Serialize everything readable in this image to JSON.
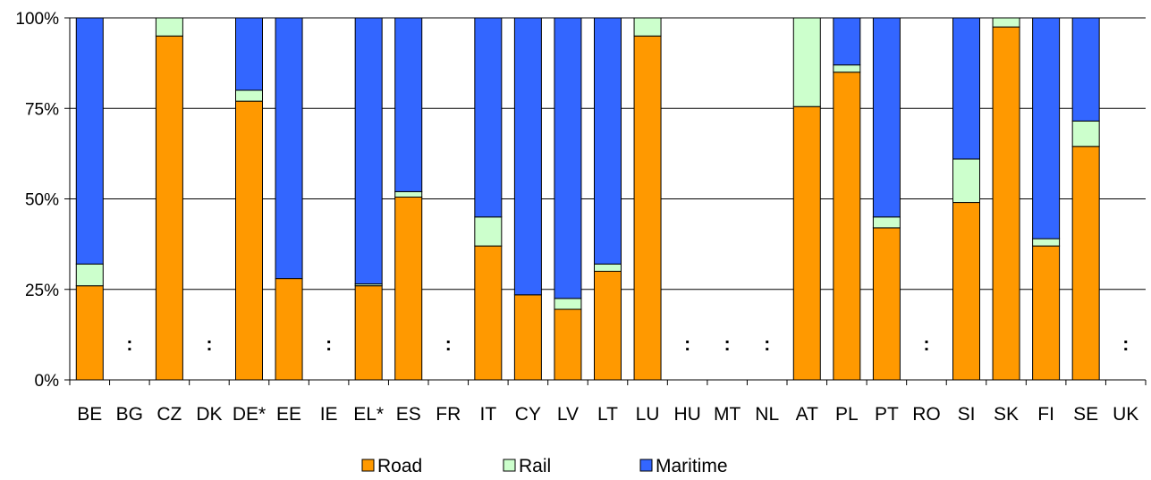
{
  "chart_data": {
    "type": "bar",
    "stacked": true,
    "percent": true,
    "categories": [
      "BE",
      "BG",
      "CZ",
      "DK",
      "DE*",
      "EE",
      "IE",
      "EL*",
      "ES",
      "FR",
      "IT",
      "CY",
      "LV",
      "LT",
      "LU",
      "HU",
      "MT",
      "NL",
      "AT",
      "PL",
      "PT",
      "RO",
      "SI",
      "SK",
      "FI",
      "SE",
      "UK"
    ],
    "series": [
      {
        "name": "Road",
        "color": "#ff9900",
        "values": [
          26,
          null,
          95,
          null,
          77,
          28,
          null,
          26,
          50.5,
          null,
          37,
          23.5,
          19.5,
          30,
          95,
          null,
          null,
          null,
          75.5,
          85,
          42,
          null,
          49,
          97.5,
          37,
          64.5,
          null
        ]
      },
      {
        "name": "Rail",
        "color": "#ccffcc",
        "values": [
          6,
          null,
          5,
          null,
          3,
          0,
          null,
          0.5,
          1.5,
          null,
          8,
          0,
          3,
          2,
          5,
          null,
          null,
          null,
          24.5,
          2,
          3,
          null,
          12,
          2.5,
          2,
          7,
          null
        ]
      },
      {
        "name": "Maritime",
        "color": "#3366ff",
        "values": [
          68,
          null,
          0,
          null,
          20,
          72,
          null,
          73.5,
          48,
          null,
          55,
          76.5,
          77.5,
          68,
          0,
          null,
          null,
          null,
          0,
          13,
          55,
          null,
          39,
          0,
          61,
          28.5,
          null
        ]
      }
    ],
    "not_available_marker": ":",
    "y_ticks": [
      "0%",
      "25%",
      "50%",
      "75%",
      "100%"
    ],
    "ylim": [
      0,
      100
    ],
    "grid": true,
    "legend_position": "bottom"
  }
}
